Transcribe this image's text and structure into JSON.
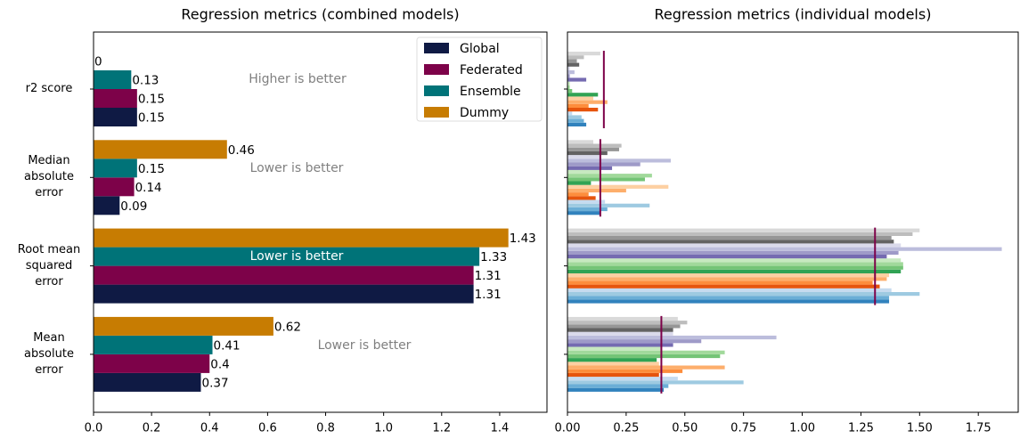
{
  "chart_data": [
    {
      "type": "hbar",
      "title": "Regression metrics (combined models)",
      "categories": [
        "r2 score",
        "Median absolute error",
        "Root mean squared error",
        "Mean absolute error"
      ],
      "series": [
        {
          "name": "Global",
          "color": "#0f1a44",
          "values": [
            0.15,
            0.09,
            1.31,
            0.37
          ]
        },
        {
          "name": "Federated",
          "color": "#7d0249",
          "values": [
            0.15,
            0.14,
            1.31,
            0.4
          ]
        },
        {
          "name": "Ensemble",
          "color": "#007378",
          "values": [
            0.13,
            0.15,
            1.33,
            0.41
          ]
        },
        {
          "name": "Dummy",
          "color": "#c77c02",
          "values": [
            0,
            0.46,
            1.43,
            0.62
          ]
        }
      ],
      "annotations": [
        "Higher is better",
        "Lower is better",
        "Lower is better",
        "Lower is better"
      ],
      "xlim": [
        0,
        1.563
      ],
      "xticks": [
        {
          "value": 0,
          "label": "0.0"
        },
        0.2,
        0.4,
        0.6,
        0.8,
        {
          "value": 1,
          "label": "1.0"
        },
        1.2,
        1.4
      ],
      "legend": "upper right"
    },
    {
      "type": "hbar",
      "title": "Regression metrics (individual models)",
      "categories": [
        null,
        null,
        null,
        null
      ],
      "series": [
        {
          "color": "#3182bd",
          "values": [
            0.08,
            0.14,
            1.37,
            0.41
          ]
        },
        {
          "color": "#6baed6",
          "values": [
            0.07,
            0.17,
            1.37,
            0.43
          ]
        },
        {
          "color": "#9ecae1",
          "values": [
            0.06,
            0.35,
            1.5,
            0.75
          ]
        },
        {
          "color": "#c6dbef",
          "values": [
            0.02,
            0.16,
            1.38,
            0.47
          ]
        },
        {
          "color": "#e6550d",
          "values": [
            0.13,
            0.12,
            1.33,
            0.39
          ]
        },
        {
          "color": "#fd8d3c",
          "values": [
            0.09,
            0.09,
            1.3,
            0.49
          ]
        },
        {
          "color": "#fdae6b",
          "values": [
            0.17,
            0.25,
            1.36,
            0.67
          ]
        },
        {
          "color": "#fdd0a2",
          "values": [
            0.11,
            0.43,
            1.37,
            0.39
          ]
        },
        {
          "color": "#31a354",
          "values": [
            0.13,
            0.1,
            1.42,
            0.38
          ]
        },
        {
          "color": "#74c476",
          "values": [
            0.02,
            0.33,
            1.43,
            0.65
          ]
        },
        {
          "color": "#a1d99b",
          "values": [
            0.01,
            0.36,
            1.43,
            0.67
          ]
        },
        {
          "color": "#c7e9c0",
          "values": [
            0.01,
            0.14,
            1.42,
            0.4
          ]
        },
        {
          "color": "#756bb1",
          "values": [
            0.08,
            0.19,
            1.36,
            0.45
          ]
        },
        {
          "color": "#9e9ac8",
          "values": [
            0.01,
            0.31,
            1.41,
            0.57
          ]
        },
        {
          "color": "#bcbddc",
          "values": [
            0.03,
            0.44,
            1.85,
            0.89
          ]
        },
        {
          "color": "#dadaeb",
          "values": [
            0.01,
            0.14,
            1.42,
            0.45
          ]
        },
        {
          "color": "#636363",
          "values": [
            0.05,
            0.17,
            1.39,
            0.45
          ]
        },
        {
          "color": "#969696",
          "values": [
            0.04,
            0.22,
            1.38,
            0.48
          ]
        },
        {
          "color": "#bdbdbd",
          "values": [
            0.07,
            0.23,
            1.47,
            0.51
          ]
        },
        {
          "color": "#d9d9d9",
          "values": [
            0.14,
            0.11,
            1.5,
            0.47
          ]
        }
      ],
      "reference_lines": {
        "color": "#7d0249",
        "values": [
          0.155,
          0.14,
          1.31,
          0.4
        ]
      },
      "xlim": [
        0,
        1.92
      ],
      "xticks": [
        {
          "value": 0,
          "label": "0.00"
        },
        0.25,
        {
          "value": 0.5,
          "label": "0.50"
        },
        0.75,
        {
          "value": 1,
          "label": "1.00"
        },
        1.25,
        {
          "value": 1.5,
          "label": "1.50"
        },
        1.75
      ]
    }
  ]
}
